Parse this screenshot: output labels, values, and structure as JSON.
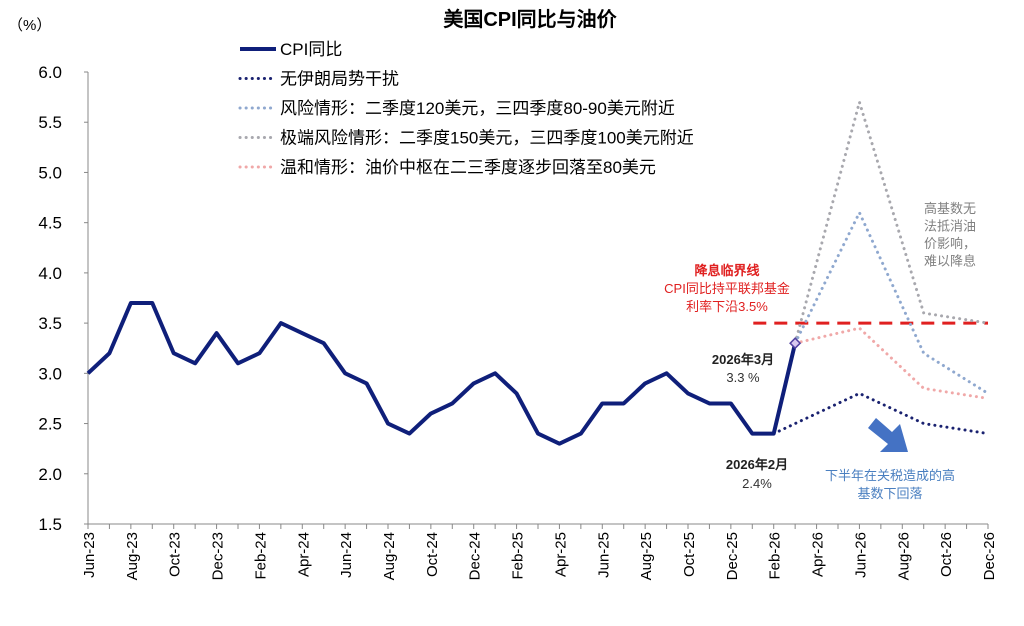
{
  "chart_data": {
    "type": "line",
    "title": "美国CPI同比与油价",
    "ylabel": "（%）",
    "xlabel": "",
    "ylim": [
      1.5,
      6.0
    ],
    "yticks": [
      "1.5",
      "2.0",
      "2.5",
      "3.0",
      "3.5",
      "4.0",
      "4.5",
      "5.0",
      "5.5",
      "6.0"
    ],
    "grid": false,
    "legend_position": "top-center",
    "x_months": [
      "Jun-23",
      "Jul-23",
      "Aug-23",
      "Sep-23",
      "Oct-23",
      "Nov-23",
      "Dec-23",
      "Jan-24",
      "Feb-24",
      "Mar-24",
      "Apr-24",
      "May-24",
      "Jun-24",
      "Jul-24",
      "Aug-24",
      "Sep-24",
      "Oct-24",
      "Nov-24",
      "Dec-24",
      "Jan-25",
      "Feb-25",
      "Mar-25",
      "Apr-25",
      "May-25",
      "Jun-25",
      "Jul-25",
      "Aug-25",
      "Sep-25",
      "Oct-25",
      "Nov-25",
      "Dec-25",
      "Jan-26",
      "Feb-26",
      "Mar-26",
      "Apr-26",
      "May-26",
      "Jun-26",
      "Jul-26",
      "Aug-26",
      "Sep-26",
      "Oct-26",
      "Nov-26",
      "Dec-26"
    ],
    "xtick_labels": [
      "Jun-23",
      "Aug-23",
      "Oct-23",
      "Dec-23",
      "Feb-24",
      "Apr-24",
      "Jun-24",
      "Aug-24",
      "Oct-24",
      "Dec-24",
      "Feb-25",
      "Apr-25",
      "Jun-25",
      "Aug-25",
      "Oct-25",
      "Dec-25",
      "Feb-26",
      "Apr-26",
      "Jun-26",
      "Aug-26",
      "Oct-26",
      "Dec-26"
    ],
    "series": [
      {
        "name": "CPI同比",
        "style": "solid",
        "color": "#0f1f7a",
        "points": [
          [
            "Jun-23",
            3.0
          ],
          [
            "Jul-23",
            3.2
          ],
          [
            "Aug-23",
            3.7
          ],
          [
            "Sep-23",
            3.7
          ],
          [
            "Oct-23",
            3.2
          ],
          [
            "Nov-23",
            3.1
          ],
          [
            "Dec-23",
            3.4
          ],
          [
            "Jan-24",
            3.1
          ],
          [
            "Feb-24",
            3.2
          ],
          [
            "Mar-24",
            3.5
          ],
          [
            "Apr-24",
            3.4
          ],
          [
            "May-24",
            3.3
          ],
          [
            "Jun-24",
            3.0
          ],
          [
            "Jul-24",
            2.9
          ],
          [
            "Aug-24",
            2.5
          ],
          [
            "Sep-24",
            2.4
          ],
          [
            "Oct-24",
            2.6
          ],
          [
            "Nov-24",
            2.7
          ],
          [
            "Dec-24",
            2.9
          ],
          [
            "Jan-25",
            3.0
          ],
          [
            "Feb-25",
            2.8
          ],
          [
            "Mar-25",
            2.4
          ],
          [
            "Apr-25",
            2.3
          ],
          [
            "May-25",
            2.4
          ],
          [
            "Jun-25",
            2.7
          ],
          [
            "Jul-25",
            2.7
          ],
          [
            "Aug-25",
            2.9
          ],
          [
            "Sep-25",
            3.0
          ],
          [
            "Oct-25",
            2.8
          ],
          [
            "Nov-25",
            2.7
          ],
          [
            "Dec-25",
            2.7
          ],
          [
            "Jan-26",
            2.4
          ],
          [
            "Feb-26",
            2.4
          ],
          [
            "Mar-26",
            3.3
          ]
        ]
      },
      {
        "name": "无伊朗局势干扰",
        "style": "dotted",
        "color": "#1a2270",
        "points": [
          [
            "Feb-26",
            2.4
          ],
          [
            "Jun-26",
            2.8
          ],
          [
            "Sep-26",
            2.5
          ],
          [
            "Dec-26",
            2.4
          ]
        ]
      },
      {
        "name": "风险情形：二季度120美元，三四季度80-90美元附近",
        "style": "dotted",
        "color": "#8fa8cf",
        "points": [
          [
            "Mar-26",
            3.3
          ],
          [
            "Jun-26",
            4.6
          ],
          [
            "Sep-26",
            3.2
          ],
          [
            "Dec-26",
            2.8
          ]
        ]
      },
      {
        "name": "极端风险情形：二季度150美元，三四季度100美元附近",
        "style": "dotted",
        "color": "#a8a8ae",
        "points": [
          [
            "Mar-26",
            3.3
          ],
          [
            "Jun-26",
            5.7
          ],
          [
            "Sep-26",
            3.6
          ],
          [
            "Dec-26",
            3.5
          ]
        ]
      },
      {
        "name": "温和情形：油价中枢在二三季度逐步回落至80美元",
        "style": "dotted",
        "color": "#f0a8a8",
        "points": [
          [
            "Mar-26",
            3.3
          ],
          [
            "Jun-26",
            3.45
          ],
          [
            "Sep-26",
            2.85
          ],
          [
            "Dec-26",
            2.75
          ]
        ]
      }
    ],
    "threshold": {
      "value": 3.5,
      "from": "Jan-26",
      "to": "Dec-26",
      "color": "#e02020"
    },
    "annotations": {
      "threshold_title": "降息临界线",
      "threshold_line1": "CPI同比持平联邦基金",
      "threshold_line2": "利率下沿3.5%",
      "mar_label": "2026年3月",
      "mar_value": "3.3 %",
      "feb_label": "2026年2月",
      "feb_value": "2.4%",
      "extreme_note": [
        "高基数无",
        "法抵消油",
        "价影响，",
        "难以降息"
      ],
      "downtrend_note": [
        "下半年在关税造成的高",
        "基数下回落"
      ]
    },
    "colors": {
      "threshold_text": "#e02020",
      "note_gray": "#808080",
      "note_blue": "#4a7fc0",
      "arrow": "#4472c4"
    }
  }
}
